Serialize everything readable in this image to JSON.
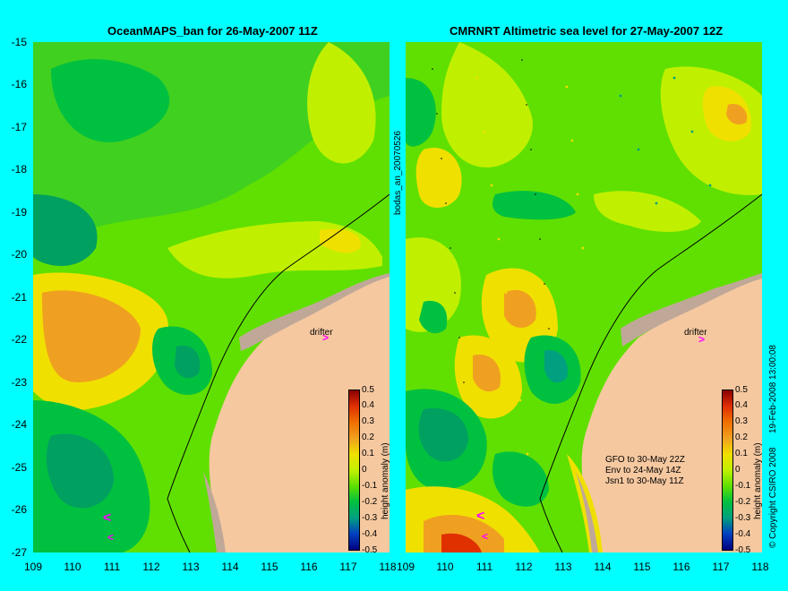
{
  "left_panel": {
    "title": "OceanMAPS_ban for 26-May-2007 11Z",
    "side_label": "bodas_an_20070526",
    "drifter_label": "drifter"
  },
  "right_panel": {
    "title": "CMRNRT Altimetric sea level  for 27-May-2007 12Z",
    "drifter_label": "drifter",
    "legend_lines": [
      "GFO to 30-May 22Z",
      "Env to 24-May 14Z",
      "Jsn1 to 30-May 11Z"
    ],
    "side_label": "19-Feb-2008 13:00:08",
    "copyright": "© Copyright CSIRO 2008"
  },
  "y_ticks": [
    "-15",
    "-16",
    "-17",
    "-18",
    "-19",
    "-20",
    "-21",
    "-22",
    "-23",
    "-24",
    "-25",
    "-26",
    "-27"
  ],
  "x_ticks_left": [
    "109",
    "110",
    "111",
    "112",
    "113",
    "114",
    "115",
    "116",
    "117",
    "118"
  ],
  "x_ticks_right": [
    "109",
    "110",
    "111",
    "112",
    "113",
    "114",
    "115",
    "116",
    "117",
    "118"
  ],
  "colorbar": {
    "label": "height anomaly (m)",
    "ticks": [
      "0.5",
      "0.4",
      "0.3",
      "0.2",
      "0.1",
      "0",
      "-0.1",
      "-0.2",
      "-0.3",
      "-0.4",
      "-0.5"
    ],
    "colors": [
      "#8b0000",
      "#e03000",
      "#f07000",
      "#f0a020",
      "#f0e000",
      "#c0f000",
      "#60e000",
      "#00c040",
      "#00a080",
      "#0040c0",
      "#000080"
    ]
  },
  "colors": {
    "background": "#00ffff",
    "land": "#f5c8a0",
    "shelf": "#c0a898",
    "drifter": "#ff00ff"
  }
}
